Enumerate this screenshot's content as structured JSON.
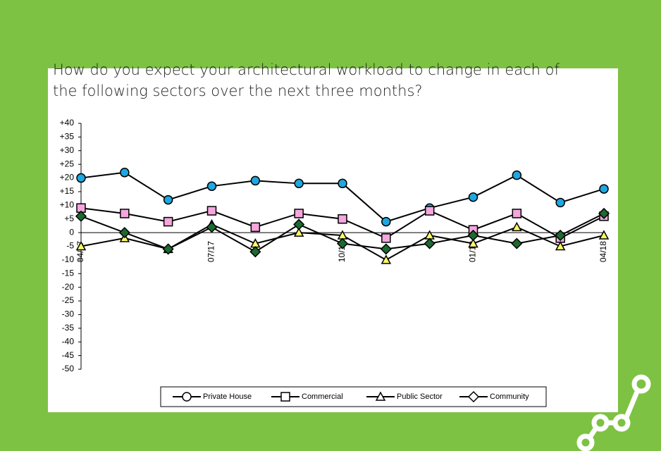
{
  "chart_data": {
    "type": "line",
    "title": "How do you expect your architectural workload to change in each of the following sectors over the next three months?",
    "categories": [
      "04/17",
      null,
      null,
      "07/17",
      null,
      null,
      "10/17",
      null,
      null,
      "01/18",
      null,
      null,
      "04/18"
    ],
    "series": [
      {
        "name": "Private House",
        "color": "#1ea7e0",
        "marker": "circle",
        "values": [
          20,
          22,
          12,
          17,
          19,
          18,
          18,
          4,
          9,
          13,
          21,
          11,
          16
        ]
      },
      {
        "name": "Commercial",
        "color": "#f4a6dd",
        "marker": "square",
        "values": [
          9,
          7,
          4,
          8,
          2,
          7,
          5,
          -2,
          8,
          1,
          7,
          -2,
          6
        ]
      },
      {
        "name": "Public Sector",
        "color": "#ffff66",
        "marker": "triangle",
        "values": [
          -5,
          -2,
          -6,
          3,
          -4,
          0,
          -1,
          -10,
          -1,
          -4,
          2,
          -5,
          -1
        ]
      },
      {
        "name": "Community",
        "color": "#1b6a2f",
        "marker": "diamond",
        "values": [
          6,
          0,
          -6,
          2,
          -7,
          3,
          -4,
          -6,
          -4,
          -1,
          -4,
          -1,
          7
        ]
      }
    ],
    "ylim": [
      -50,
      40
    ],
    "yticks": [
      {
        "value": 40,
        "label": "+40"
      },
      {
        "value": 35,
        "label": "+35"
      },
      {
        "value": 30,
        "label": "+30"
      },
      {
        "value": 25,
        "label": "+25"
      },
      {
        "value": 20,
        "label": "+20"
      },
      {
        "value": 15,
        "label": "+15"
      },
      {
        "value": 10,
        "label": "+10"
      },
      {
        "value": 5,
        "label": "+5"
      },
      0,
      -5,
      -10,
      -15,
      -20,
      -25,
      -30,
      -35,
      -40,
      -45,
      -50
    ],
    "legend": "bottom"
  }
}
